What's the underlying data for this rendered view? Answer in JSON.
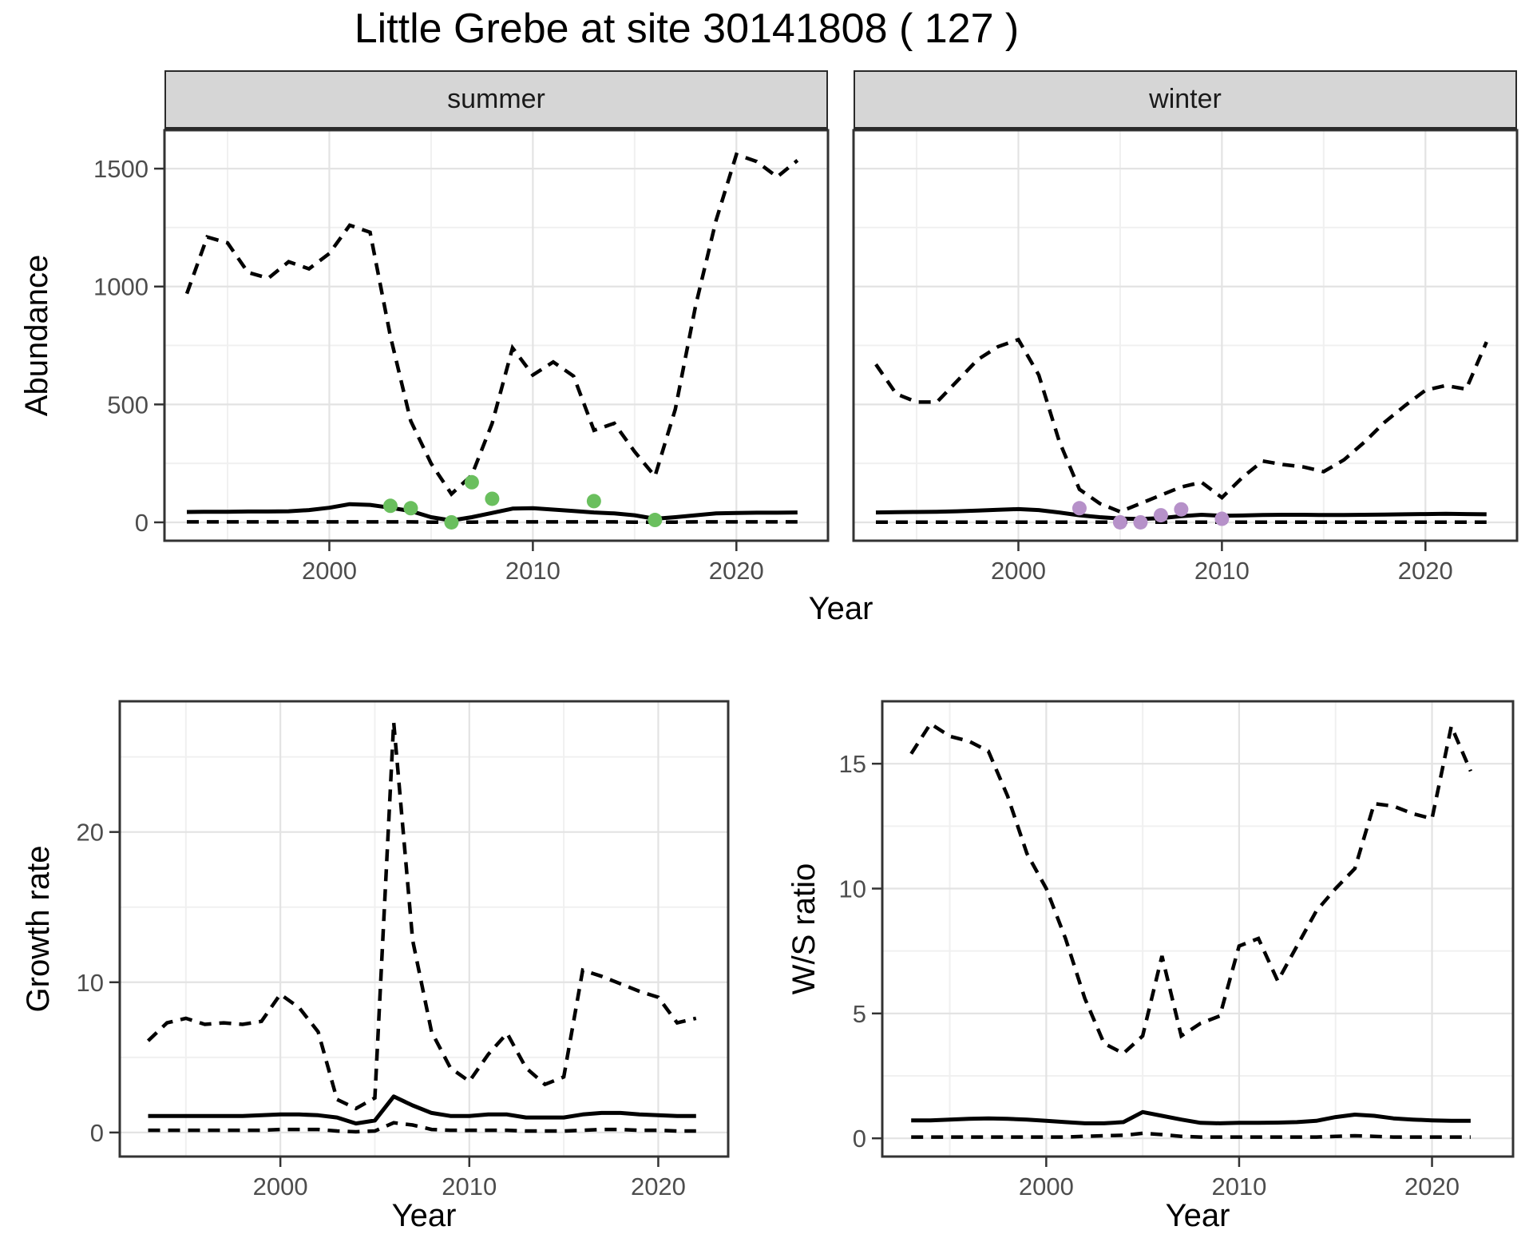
{
  "title": "Little Grebe at site 30141808 ( 127 )",
  "colors": {
    "summer_points": "#6abf5e",
    "winter_points": "#b691c9",
    "line": "#000000",
    "panel_border": "#333333",
    "strip_bg": "#d6d6d6",
    "grid_major": "#e3e3e3",
    "grid_minor": "#f0f0f0",
    "tick_text": "#4d4d4d"
  },
  "chart_data": {
    "type": "line",
    "title": "Little Grebe at site 30141808 ( 127 )",
    "facets": [
      "summer",
      "winter"
    ],
    "shared_xlabel": "Year",
    "legend": "none",
    "grid": true,
    "panels": [
      {
        "id": "abundance-summer",
        "strip": "summer",
        "ylabel": "Abundance",
        "xlabel": "Year",
        "xlim": [
          1991.9,
          2024.5
        ],
        "ylim": [
          -78,
          1663
        ],
        "xticks": [
          2000,
          2010,
          2020
        ],
        "xticks_minor": [
          1995,
          2005,
          2015
        ],
        "yticks": [
          0,
          500,
          1000,
          1500
        ],
        "yticks_minor": [
          250,
          750,
          1250
        ],
        "years": [
          1993,
          1994,
          1995,
          1996,
          1997,
          1998,
          1999,
          2000,
          2001,
          2002,
          2003,
          2004,
          2005,
          2006,
          2007,
          2008,
          2009,
          2010,
          2011,
          2012,
          2013,
          2014,
          2015,
          2016,
          2017,
          2018,
          2019,
          2020,
          2021,
          2022,
          2023
        ],
        "upper_ci": [
          970,
          1210,
          1185,
          1060,
          1035,
          1105,
          1075,
          1140,
          1260,
          1230,
          790,
          430,
          250,
          120,
          200,
          420,
          740,
          625,
          680,
          620,
          390,
          420,
          300,
          195,
          480,
          920,
          1280,
          1560,
          1530,
          1465,
          1535
        ],
        "mean": [
          44,
          45,
          45,
          46,
          46,
          47,
          52,
          62,
          77,
          74,
          62,
          48,
          22,
          8,
          22,
          40,
          58,
          60,
          54,
          48,
          42,
          38,
          30,
          15,
          22,
          30,
          38,
          40,
          41,
          41,
          42
        ],
        "lower_ci": [
          2,
          2,
          2,
          2,
          2,
          2,
          2,
          2,
          2,
          2,
          2,
          2,
          1,
          0,
          1,
          2,
          2,
          2,
          2,
          2,
          2,
          2,
          1,
          1,
          1,
          2,
          2,
          2,
          2,
          2,
          2
        ],
        "observations": {
          "years": [
            2003,
            2004,
            2006,
            2007,
            2008,
            2013,
            2016
          ],
          "values": [
            70,
            60,
            0,
            170,
            100,
            90,
            10
          ],
          "color_key": "summer_points"
        }
      },
      {
        "id": "abundance-winter",
        "strip": "winter",
        "ylabel": null,
        "xlabel": "Year",
        "xlim": [
          1991.9,
          2024.5
        ],
        "ylim": [
          -78,
          1663
        ],
        "xticks": [
          2000,
          2010,
          2020
        ],
        "xticks_minor": [
          1995,
          2005,
          2015
        ],
        "yticks": [
          0,
          500,
          1000,
          1500
        ],
        "yticks_minor": [
          250,
          750,
          1250
        ],
        "years": [
          1993,
          1994,
          1995,
          1996,
          1997,
          1998,
          1999,
          2000,
          2001,
          2002,
          2003,
          2004,
          2005,
          2006,
          2007,
          2008,
          2009,
          2010,
          2011,
          2012,
          2013,
          2014,
          2015,
          2016,
          2017,
          2018,
          2019,
          2020,
          2021,
          2022,
          2023
        ],
        "upper_ci": [
          670,
          545,
          510,
          510,
          600,
          690,
          745,
          775,
          625,
          345,
          140,
          80,
          45,
          80,
          115,
          150,
          170,
          105,
          190,
          260,
          245,
          235,
          215,
          265,
          340,
          425,
          495,
          560,
          580,
          565,
          765
        ],
        "mean": [
          42,
          43,
          44,
          45,
          47,
          50,
          53,
          56,
          52,
          42,
          30,
          22,
          16,
          14,
          18,
          26,
          32,
          28,
          29,
          31,
          32,
          32,
          31,
          31,
          32,
          33,
          34,
          35,
          36,
          35,
          34
        ],
        "lower_ci": [
          1,
          1,
          1,
          1,
          1,
          1,
          1,
          1,
          1,
          1,
          1,
          1,
          1,
          1,
          1,
          1,
          1,
          1,
          1,
          1,
          1,
          1,
          1,
          1,
          1,
          1,
          1,
          1,
          1,
          1,
          1
        ],
        "observations": {
          "years": [
            2003,
            2005,
            2006,
            2007,
            2008,
            2010
          ],
          "values": [
            60,
            0,
            0,
            30,
            55,
            15
          ],
          "color_key": "winter_points"
        }
      },
      {
        "id": "growth-rate",
        "strip": null,
        "ylabel": "Growth rate",
        "xlabel": "Year",
        "xlim": [
          1991.5,
          2023.7
        ],
        "ylim": [
          -1.6,
          28.7
        ],
        "xticks": [
          2000,
          2010,
          2020
        ],
        "xticks_minor": [
          1995,
          2005,
          2015
        ],
        "yticks": [
          0,
          10,
          20
        ],
        "yticks_minor": [
          5,
          15,
          25
        ],
        "years": [
          1993,
          1994,
          1995,
          1996,
          1997,
          1998,
          1999,
          2000,
          2001,
          2002,
          2003,
          2004,
          2005,
          2006,
          2007,
          2008,
          2009,
          2010,
          2011,
          2012,
          2013,
          2014,
          2015,
          2016,
          2017,
          2018,
          2019,
          2020,
          2021,
          2022
        ],
        "upper_ci": [
          6.1,
          7.3,
          7.6,
          7.2,
          7.3,
          7.2,
          7.4,
          9.2,
          8.3,
          6.7,
          2.2,
          1.6,
          2.3,
          27.3,
          12.8,
          6.7,
          4.3,
          3.4,
          5.2,
          6.6,
          4.3,
          3.2,
          3.7,
          10.8,
          10.4,
          9.9,
          9.4,
          9.0,
          7.3,
          7.6
        ],
        "mean": [
          1.1,
          1.1,
          1.1,
          1.1,
          1.1,
          1.1,
          1.15,
          1.2,
          1.2,
          1.15,
          1.0,
          0.6,
          0.8,
          2.4,
          1.8,
          1.3,
          1.1,
          1.1,
          1.2,
          1.2,
          1.0,
          1.0,
          1.0,
          1.2,
          1.3,
          1.3,
          1.2,
          1.15,
          1.1,
          1.1
        ],
        "lower_ci": [
          0.15,
          0.15,
          0.15,
          0.15,
          0.15,
          0.15,
          0.15,
          0.2,
          0.2,
          0.2,
          0.1,
          0.05,
          0.1,
          0.65,
          0.5,
          0.2,
          0.15,
          0.15,
          0.15,
          0.15,
          0.1,
          0.1,
          0.1,
          0.15,
          0.2,
          0.2,
          0.15,
          0.15,
          0.1,
          0.1
        ],
        "observations": null
      },
      {
        "id": "ws-ratio",
        "strip": null,
        "ylabel": "W/S ratio",
        "xlabel": "Year",
        "xlim": [
          1991.5,
          2024.2
        ],
        "ylim": [
          -0.73,
          17.5
        ],
        "xticks": [
          2000,
          2010,
          2020
        ],
        "xticks_minor": [
          1995,
          2005,
          2015
        ],
        "yticks": [
          0,
          5,
          10,
          15
        ],
        "yticks_minor": [
          2.5,
          7.5,
          12.5
        ],
        "years": [
          1993,
          1994,
          1995,
          1996,
          1997,
          1998,
          1999,
          2000,
          2001,
          2002,
          2003,
          2004,
          2005,
          2006,
          2007,
          2008,
          2009,
          2010,
          2011,
          2012,
          2013,
          2014,
          2015,
          2016,
          2017,
          2018,
          2019,
          2020,
          2021,
          2022
        ],
        "upper_ci": [
          15.4,
          16.6,
          16.1,
          15.9,
          15.5,
          13.7,
          11.4,
          10.0,
          8.0,
          5.6,
          3.8,
          3.4,
          4.1,
          7.3,
          4.1,
          4.6,
          4.9,
          7.7,
          8.0,
          6.3,
          7.7,
          9.1,
          10.0,
          10.8,
          13.4,
          13.3,
          13.0,
          12.8,
          16.5,
          14.7
        ],
        "mean": [
          0.72,
          0.72,
          0.75,
          0.78,
          0.8,
          0.78,
          0.75,
          0.7,
          0.65,
          0.6,
          0.6,
          0.65,
          1.05,
          0.9,
          0.75,
          0.62,
          0.6,
          0.62,
          0.62,
          0.63,
          0.65,
          0.7,
          0.85,
          0.95,
          0.9,
          0.8,
          0.75,
          0.72,
          0.7,
          0.7
        ],
        "lower_ci": [
          0.05,
          0.05,
          0.05,
          0.05,
          0.05,
          0.05,
          0.05,
          0.05,
          0.05,
          0.08,
          0.1,
          0.12,
          0.2,
          0.15,
          0.08,
          0.05,
          0.05,
          0.05,
          0.05,
          0.05,
          0.05,
          0.05,
          0.08,
          0.1,
          0.08,
          0.05,
          0.05,
          0.05,
          0.05,
          0.05
        ],
        "observations": null
      }
    ]
  }
}
